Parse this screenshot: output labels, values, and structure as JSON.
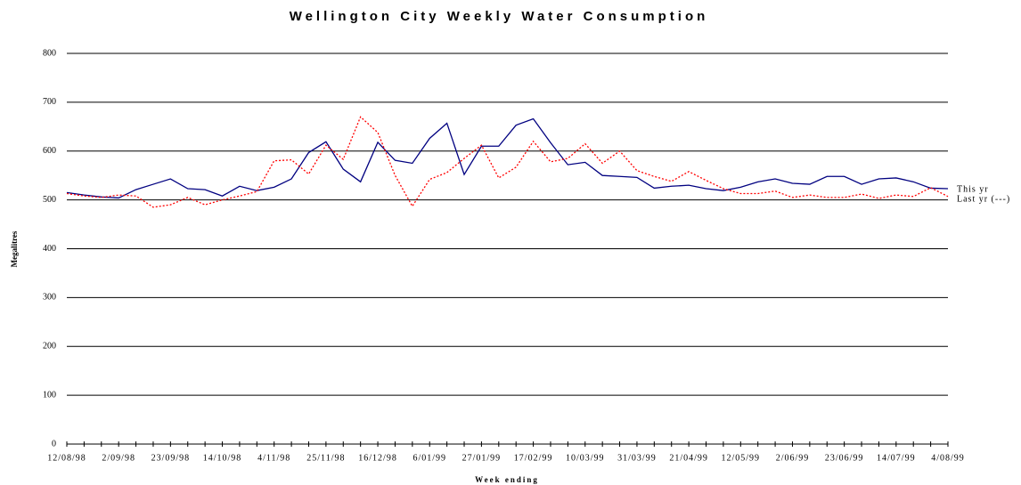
{
  "chart_data": {
    "type": "line",
    "title": "Wellington City Weekly Water Consumption",
    "y_label": "Megalitres",
    "x_label": "Week ending",
    "categories": [
      "12/08/98",
      null,
      null,
      "2/09/98",
      null,
      null,
      "23/09/98",
      null,
      null,
      "14/10/98",
      null,
      null,
      "4/11/98",
      null,
      null,
      "25/11/98",
      null,
      null,
      "16/12/98",
      null,
      null,
      "6/01/99",
      null,
      null,
      "27/01/99",
      null,
      null,
      "17/02/99",
      null,
      null,
      "10/03/99",
      null,
      null,
      "31/03/99",
      null,
      null,
      "21/04/99",
      null,
      null,
      "12/05/99",
      null,
      null,
      "2/06/99",
      null,
      null,
      "23/06/99",
      null,
      null,
      "14/07/99",
      null,
      null,
      "4/08/99"
    ],
    "series": [
      {
        "name": "This yr",
        "color": "#000080",
        "dashed": false,
        "values": [
          515,
          510,
          506,
          504,
          521,
          532,
          543,
          523,
          521,
          508,
          528,
          519,
          526,
          543,
          597,
          619,
          563,
          537,
          618,
          581,
          575,
          626,
          657,
          552,
          610,
          610,
          653,
          666,
          617,
          572,
          577,
          550,
          548,
          546,
          524,
          528,
          530,
          523,
          519,
          526,
          537,
          543,
          534,
          532,
          548,
          548,
          532,
          543,
          545,
          537,
          524,
          523
        ]
      },
      {
        "name": "Last yr (---)",
        "color": "#ff0000",
        "dashed": true,
        "values": [
          513,
          508,
          505,
          510,
          508,
          485,
          490,
          505,
          490,
          500,
          508,
          517,
          580,
          582,
          553,
          612,
          583,
          670,
          638,
          550,
          487,
          542,
          556,
          585,
          612,
          545,
          567,
          620,
          578,
          585,
          615,
          575,
          600,
          560,
          548,
          538,
          558,
          540,
          523,
          513,
          513,
          518,
          505,
          510,
          505,
          505,
          512,
          503,
          510,
          507,
          525,
          507
        ]
      }
    ],
    "ylim": [
      0,
      800
    ],
    "yticks": [
      0,
      100,
      200,
      300,
      400,
      500,
      600,
      700,
      800
    ],
    "grid": true
  }
}
